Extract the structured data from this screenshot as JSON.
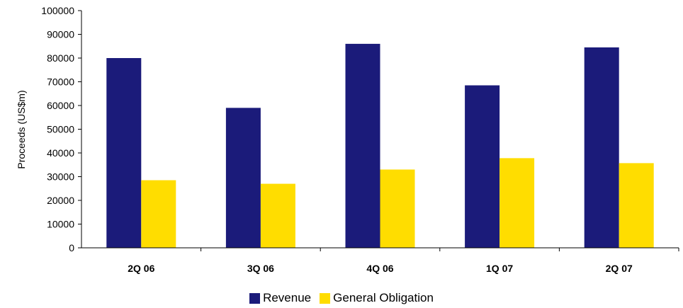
{
  "colors": {
    "revenue": "#1b1b7a",
    "general_obligation": "#ffdd00",
    "axis": "#000000"
  },
  "chart_data": {
    "type": "bar",
    "categories": [
      "2Q 06",
      "3Q 06",
      "4Q 06",
      "1Q 07",
      "2Q 07"
    ],
    "series": [
      {
        "name": "Revenue",
        "values": [
          80000,
          59000,
          86000,
          68500,
          84500
        ]
      },
      {
        "name": "General Obligation",
        "values": [
          28500,
          27000,
          33000,
          37800,
          35700
        ]
      }
    ],
    "ylabel": "Proceeds (US$m)",
    "ylim": [
      0,
      100000
    ],
    "yticks": [
      "0",
      "10000",
      "20000",
      "30000",
      "40000",
      "50000",
      "60000",
      "70000",
      "80000",
      "90000",
      "100000"
    ],
    "grid": false,
    "legend_position": "bottom-center"
  }
}
